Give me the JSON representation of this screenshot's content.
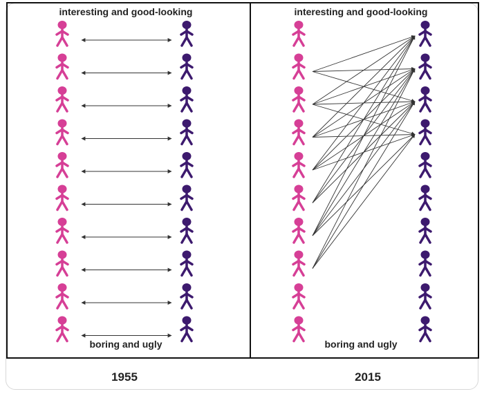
{
  "panels": [
    {
      "id": "left",
      "top_label": "interesting and good-looking",
      "bottom_label": "boring and ugly",
      "year": "1955"
    },
    {
      "id": "right",
      "top_label": "interesting and good-looking",
      "bottom_label": "boring and ugly",
      "year": "2015"
    }
  ],
  "colors": {
    "women": "#d63f96",
    "men": "#3d1a6e",
    "arrows": "#333333",
    "border": "#111111"
  },
  "figures_per_column": 10,
  "left_matches": [
    [
      0,
      0
    ],
    [
      1,
      1
    ],
    [
      2,
      2
    ],
    [
      3,
      3
    ],
    [
      4,
      4
    ],
    [
      5,
      5
    ],
    [
      6,
      6
    ],
    [
      7,
      7
    ],
    [
      8,
      8
    ],
    [
      9,
      9
    ]
  ],
  "right_matches": [
    [
      1,
      0
    ],
    [
      1,
      1
    ],
    [
      1,
      2
    ],
    [
      2,
      0
    ],
    [
      2,
      1
    ],
    [
      2,
      2
    ],
    [
      2,
      3
    ],
    [
      3,
      0
    ],
    [
      3,
      1
    ],
    [
      3,
      2
    ],
    [
      3,
      3
    ],
    [
      4,
      0
    ],
    [
      4,
      1
    ],
    [
      4,
      2
    ],
    [
      4,
      3
    ],
    [
      5,
      0
    ],
    [
      5,
      1
    ],
    [
      5,
      2
    ],
    [
      6,
      0
    ],
    [
      6,
      1
    ],
    [
      6,
      2
    ],
    [
      6,
      3
    ],
    [
      7,
      1
    ],
    [
      7,
      2
    ],
    [
      7,
      3
    ]
  ]
}
